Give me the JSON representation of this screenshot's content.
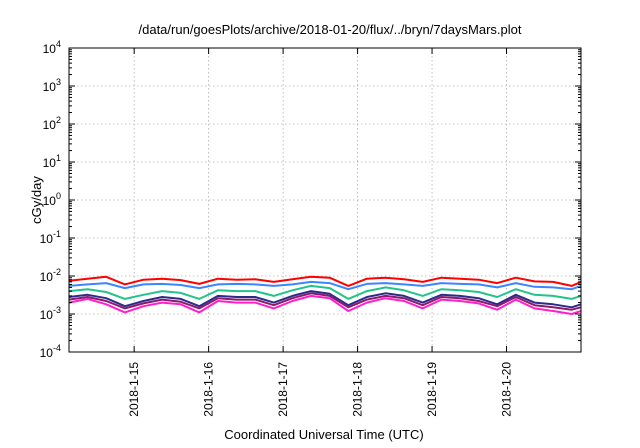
{
  "chart_data": {
    "type": "line",
    "title": "/data/run/goesPlots/archive/2018-01-20/flux/../bryn/7daysMars.plot",
    "xlabel": "Coordinated Universal Time (UTC)",
    "ylabel": "cGy/day",
    "yscale": "log",
    "ylim": [
      0.0001,
      10000
    ],
    "yticks": [
      {
        "base": "10",
        "exp": "-4",
        "value": 0.0001
      },
      {
        "base": "10",
        "exp": "-3",
        "value": 0.001
      },
      {
        "base": "10",
        "exp": "-2",
        "value": 0.01
      },
      {
        "base": "10",
        "exp": "-1",
        "value": 0.1
      },
      {
        "base": "10",
        "exp": "0",
        "value": 1
      },
      {
        "base": "10",
        "exp": "1",
        "value": 10
      },
      {
        "base": "10",
        "exp": "2",
        "value": 100
      },
      {
        "base": "10",
        "exp": "3",
        "value": 1000
      },
      {
        "base": "10",
        "exp": "4",
        "value": 10000
      }
    ],
    "xlim": [
      "2018-01-14T03:00",
      "2018-01-21T00:00"
    ],
    "xticks": [
      "2018-1-15",
      "2018-1-16",
      "2018-1-17",
      "2018-1-18",
      "2018-1-19",
      "2018-1-20"
    ],
    "grid": true,
    "x": [
      "2018-01-14T03:00",
      "2018-01-14T09:00",
      "2018-01-14T15:00",
      "2018-01-14T21:00",
      "2018-01-15T03:00",
      "2018-01-15T09:00",
      "2018-01-15T15:00",
      "2018-01-15T21:00",
      "2018-01-16T03:00",
      "2018-01-16T09:00",
      "2018-01-16T15:00",
      "2018-01-16T21:00",
      "2018-01-17T03:00",
      "2018-01-17T09:00",
      "2018-01-17T15:00",
      "2018-01-17T21:00",
      "2018-01-18T03:00",
      "2018-01-18T09:00",
      "2018-01-18T15:00",
      "2018-01-18T21:00",
      "2018-01-19T03:00",
      "2018-01-19T09:00",
      "2018-01-19T15:00",
      "2018-01-19T21:00",
      "2018-01-20T03:00",
      "2018-01-20T09:00",
      "2018-01-20T15:00",
      "2018-01-20T21:00",
      "2018-01-21T00:00"
    ],
    "series": [
      {
        "color": "#ff0000",
        "values": [
          0.0075,
          0.0085,
          0.0095,
          0.006,
          0.008,
          0.0085,
          0.0078,
          0.0062,
          0.0085,
          0.008,
          0.0082,
          0.007,
          0.0082,
          0.0095,
          0.009,
          0.0055,
          0.0085,
          0.009,
          0.0082,
          0.007,
          0.009,
          0.0085,
          0.008,
          0.0065,
          0.009,
          0.0072,
          0.007,
          0.0055,
          0.007
        ]
      },
      {
        "color": "#3a86ff",
        "values": [
          0.0055,
          0.006,
          0.0065,
          0.0048,
          0.006,
          0.0062,
          0.0058,
          0.0048,
          0.006,
          0.0062,
          0.006,
          0.0055,
          0.006,
          0.007,
          0.0065,
          0.0045,
          0.0062,
          0.0065,
          0.006,
          0.0055,
          0.0065,
          0.0062,
          0.006,
          0.005,
          0.0065,
          0.0052,
          0.005,
          0.0045,
          0.0055
        ]
      },
      {
        "color": "#21c48a",
        "values": [
          0.004,
          0.0045,
          0.0038,
          0.0025,
          0.0032,
          0.004,
          0.0036,
          0.0025,
          0.0042,
          0.004,
          0.004,
          0.003,
          0.0042,
          0.0055,
          0.0048,
          0.0025,
          0.004,
          0.005,
          0.0042,
          0.003,
          0.0045,
          0.0042,
          0.0038,
          0.0028,
          0.0045,
          0.0032,
          0.003,
          0.0025,
          0.003
        ]
      },
      {
        "color": "#2d2a8c",
        "values": [
          0.0028,
          0.0032,
          0.0026,
          0.0016,
          0.0022,
          0.0028,
          0.0025,
          0.0016,
          0.003,
          0.0028,
          0.0028,
          0.002,
          0.003,
          0.004,
          0.0034,
          0.0017,
          0.0028,
          0.0035,
          0.003,
          0.002,
          0.0032,
          0.003,
          0.0026,
          0.0018,
          0.0032,
          0.002,
          0.0018,
          0.0015,
          0.0018
        ]
      },
      {
        "color": "#8b1a6b",
        "values": [
          0.0024,
          0.0028,
          0.0022,
          0.0014,
          0.0019,
          0.0024,
          0.0021,
          0.0014,
          0.0026,
          0.0024,
          0.0024,
          0.0017,
          0.0026,
          0.0035,
          0.003,
          0.0015,
          0.0024,
          0.003,
          0.0026,
          0.0017,
          0.0028,
          0.0026,
          0.0022,
          0.0016,
          0.0028,
          0.0017,
          0.0015,
          0.0013,
          0.0015
        ]
      },
      {
        "color": "#ff1ecc",
        "values": [
          0.002,
          0.0025,
          0.0018,
          0.0011,
          0.0016,
          0.002,
          0.0018,
          0.0011,
          0.0022,
          0.002,
          0.002,
          0.0014,
          0.0022,
          0.003,
          0.0026,
          0.0012,
          0.002,
          0.0026,
          0.0022,
          0.0014,
          0.0024,
          0.0022,
          0.0019,
          0.0013,
          0.0024,
          0.0014,
          0.0012,
          0.001,
          0.0012
        ]
      }
    ]
  }
}
